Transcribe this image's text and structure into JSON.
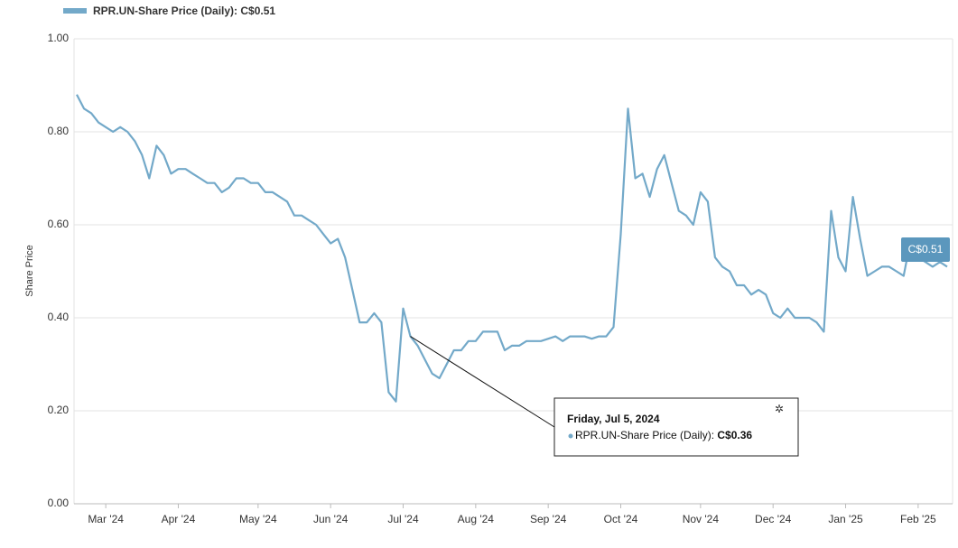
{
  "chart_data": {
    "type": "line",
    "ylabel": "Share Price",
    "ylim": [
      0,
      1
    ],
    "yticks": [
      {
        "value": 0,
        "label": "0.00"
      },
      {
        "value": 0.2,
        "label": "0.20"
      },
      {
        "value": 0.4,
        "label": "0.40"
      },
      {
        "value": 0.6,
        "label": "0.60"
      },
      {
        "value": 0.8,
        "label": "0.80"
      },
      {
        "value": 1,
        "label": "1.00"
      }
    ],
    "grid": true,
    "last_label": "C$0.51",
    "tooltip": {
      "date": "Friday, Jul 5, 2024",
      "series": "RPR.UN-Share Price (Daily):",
      "value_label": "C$0.36"
    },
    "categories": [
      null,
      null,
      null,
      null,
      "Mar '24",
      null,
      null,
      null,
      null,
      null,
      null,
      null,
      null,
      null,
      "Apr '24",
      null,
      null,
      null,
      null,
      null,
      null,
      null,
      null,
      null,
      null,
      "May '24",
      null,
      null,
      null,
      null,
      null,
      null,
      null,
      null,
      null,
      "Jun '24",
      null,
      null,
      null,
      null,
      null,
      null,
      null,
      null,
      null,
      "Jul '24",
      null,
      null,
      null,
      null,
      null,
      null,
      null,
      null,
      null,
      "Aug '24",
      null,
      null,
      null,
      null,
      null,
      null,
      null,
      null,
      null,
      "Sep '24",
      null,
      null,
      null,
      null,
      null,
      null,
      null,
      null,
      null,
      "Oct '24",
      null,
      null,
      null,
      null,
      null,
      null,
      null,
      null,
      null,
      null,
      "Nov '24",
      null,
      null,
      null,
      null,
      null,
      null,
      null,
      null,
      null,
      "Dec '24",
      null,
      null,
      null,
      null,
      null,
      null,
      null,
      null,
      null,
      "Jan '25",
      null,
      null,
      null,
      null,
      null,
      null,
      null,
      null,
      null,
      "Feb '25",
      null,
      null,
      null,
      null
    ],
    "series": [
      {
        "name": "RPR.UN-Share Price (Daily):",
        "color": "#73a9c9",
        "values": [
          0.88,
          0.85,
          0.84,
          0.82,
          0.81,
          0.8,
          0.81,
          0.8,
          0.78,
          0.75,
          0.7,
          0.77,
          0.75,
          0.71,
          0.72,
          0.72,
          0.71,
          0.7,
          0.69,
          0.69,
          0.67,
          0.68,
          0.7,
          0.7,
          0.69,
          0.69,
          0.67,
          0.67,
          0.66,
          0.65,
          0.62,
          0.62,
          0.61,
          0.6,
          0.58,
          0.56,
          0.57,
          0.53,
          0.46,
          0.39,
          0.39,
          0.41,
          0.39,
          0.24,
          0.22,
          0.42,
          0.36,
          0.34,
          0.31,
          0.28,
          0.27,
          0.3,
          0.33,
          0.33,
          0.35,
          0.35,
          0.37,
          0.37,
          0.37,
          0.33,
          0.34,
          0.34,
          0.35,
          0.35,
          0.35,
          0.355,
          0.36,
          0.35,
          0.36,
          0.36,
          0.36,
          0.355,
          0.36,
          0.36,
          0.38,
          0.58,
          0.85,
          0.7,
          0.71,
          0.66,
          0.72,
          0.75,
          0.69,
          0.63,
          0.62,
          0.6,
          0.67,
          0.65,
          0.53,
          0.51,
          0.5,
          0.47,
          0.47,
          0.45,
          0.46,
          0.45,
          0.41,
          0.4,
          0.42,
          0.4,
          0.4,
          0.4,
          0.39,
          0.37,
          0.63,
          0.53,
          0.5,
          0.66,
          0.57,
          0.49,
          0.5,
          0.51,
          0.51,
          0.5,
          0.49,
          0.57,
          0.53,
          0.52,
          0.51,
          0.52,
          0.51
        ]
      }
    ]
  }
}
